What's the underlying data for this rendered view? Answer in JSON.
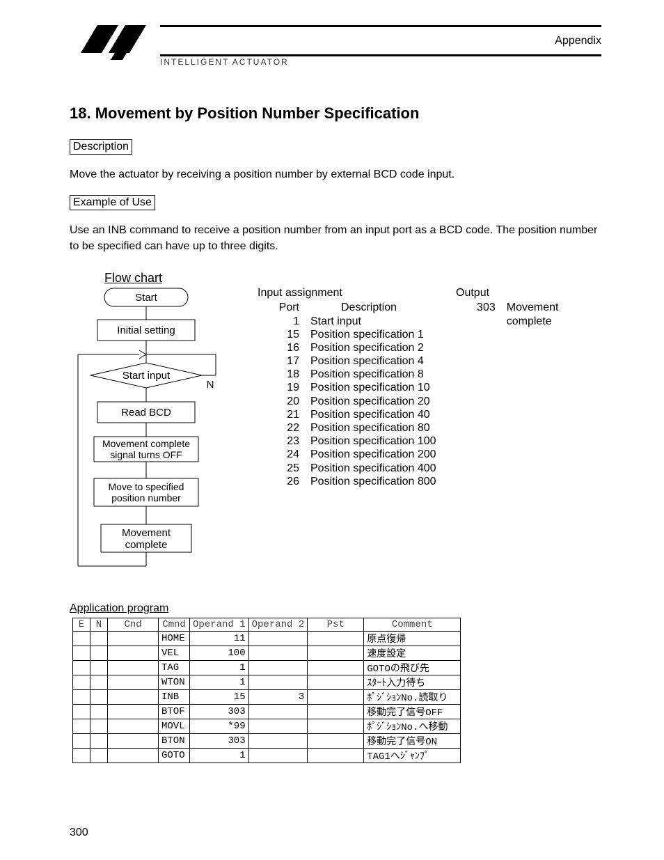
{
  "header": {
    "appendix": "Appendix",
    "subtitle": "INTELLIGENT ACTUATOR"
  },
  "title": "18. Movement by Position Number Specification",
  "description_label": "Description",
  "description_text": "Move the actuator by receiving a position number by external BCD code input.",
  "example_label": "Example of Use",
  "example_text": "Use an INB command to receive a position number from an input port as a BCD code. The position number to be specified can have up to three digits.",
  "flow": {
    "title": "Flow chart",
    "nodes": {
      "start": "Start",
      "init": "Initial setting",
      "sinput": "Start input",
      "n": "N",
      "readbcd": "Read BCD",
      "off": "Movement complete\nsignal turns OFF",
      "move": "Move to specified\nposition number",
      "done": "Movement\ncomplete"
    }
  },
  "input": {
    "head": "Input assignment",
    "port_h": "Port",
    "desc_h": "Description",
    "rows": [
      {
        "port": "1",
        "desc": "Start input"
      },
      {
        "port": "15",
        "desc": "Position specification 1"
      },
      {
        "port": "16",
        "desc": "Position specification 2"
      },
      {
        "port": "17",
        "desc": "Position specification 4"
      },
      {
        "port": "18",
        "desc": "Position specification 8"
      },
      {
        "port": "19",
        "desc": "Position specification 10"
      },
      {
        "port": "20",
        "desc": "Position specification 20"
      },
      {
        "port": "21",
        "desc": "Position specification 40"
      },
      {
        "port": "22",
        "desc": "Position specification 80"
      },
      {
        "port": "23",
        "desc": "Position specification 100"
      },
      {
        "port": "24",
        "desc": "Position specification 200"
      },
      {
        "port": "25",
        "desc": "Position specification 400"
      },
      {
        "port": "26",
        "desc": "Position specification 800"
      }
    ]
  },
  "output": {
    "head": "Output",
    "rows": [
      {
        "port": "303",
        "desc": "Movement complete"
      }
    ]
  },
  "app_title": "Application program",
  "table": {
    "headers": [
      "E",
      "N",
      "Cnd",
      "Cmnd",
      "Operand 1",
      "Operand 2",
      "Pst",
      "Comment"
    ],
    "rows": [
      {
        "cmd": "HOME",
        "op1": "11",
        "op2": "",
        "pst": "",
        "cm": "原点復帰"
      },
      {
        "cmd": "VEL",
        "op1": "100",
        "op2": "",
        "pst": "",
        "cm": "速度設定"
      },
      {
        "cmd": "TAG",
        "op1": "1",
        "op2": "",
        "pst": "",
        "cm": "GOTOの飛び先"
      },
      {
        "cmd": "WTON",
        "op1": "1",
        "op2": "",
        "pst": "",
        "cm": "ｽﾀｰﾄ入力待ち"
      },
      {
        "cmd": "INB",
        "op1": "15",
        "op2": "3",
        "pst": "",
        "cm": "ﾎﾟｼﾞｼｮﾝNo.読取り"
      },
      {
        "cmd": "BTOF",
        "op1": "303",
        "op2": "",
        "pst": "",
        "cm": "移動完了信号OFF"
      },
      {
        "cmd": "MOVL",
        "op1": "*99",
        "op2": "",
        "pst": "",
        "cm": "ﾎﾟｼﾞｼｮﾝNo.へ移動"
      },
      {
        "cmd": "BTON",
        "op1": "303",
        "op2": "",
        "pst": "",
        "cm": "移動完了信号ON"
      },
      {
        "cmd": "GOTO",
        "op1": "1",
        "op2": "",
        "pst": "",
        "cm": "TAG1へｼﾞｬﾝﾌﾟ"
      }
    ]
  },
  "page_number": "300"
}
